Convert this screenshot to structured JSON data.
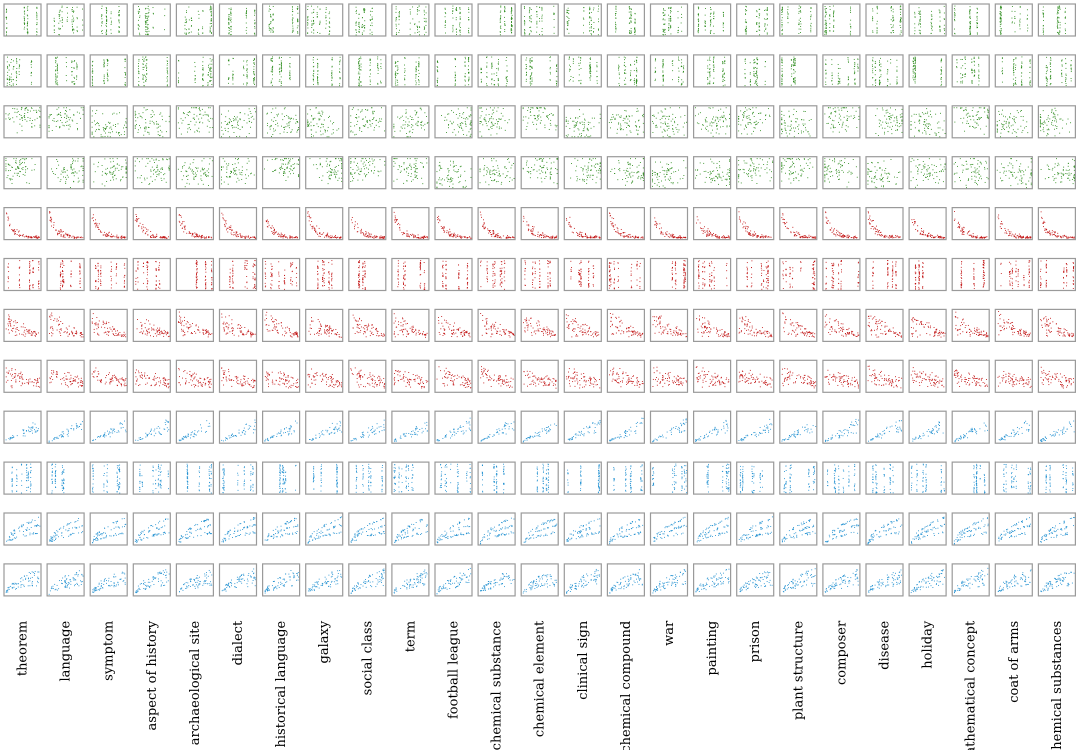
{
  "chart_data": {
    "type": "scatter",
    "layout": "small-multiples grid",
    "grid": false,
    "columns": [
      "theorem",
      "language",
      "symptom",
      "aspect of history",
      "archaeological site",
      "dialect",
      "historical language",
      "galaxy",
      "social class",
      "term",
      "football league",
      "chemical substance",
      "chemical element",
      "clinical sign",
      "chemical compound",
      "war",
      "painting",
      "prison",
      "plant structure",
      "composer",
      "disease",
      "holiday",
      "mathematical concept",
      "coat of arms",
      "chemical substances"
    ],
    "row_groups": [
      {
        "name": "group-1",
        "color": "#2a8a1a",
        "rows": 4
      },
      {
        "name": "group-2",
        "color": "#c01010",
        "rows": 4
      },
      {
        "name": "group-3",
        "color": "#1f8fd0",
        "rows": 4
      }
    ],
    "row_patterns": [
      "vertical-bands",
      "vertical-bands",
      "diffuse-cloud",
      "diffuse-cloud",
      "decay-curve",
      "vertical-bands",
      "decay-clusters",
      "decay-cloud",
      "rising-sparse",
      "vertical-bands",
      "rising-curves",
      "rising-cloud"
    ],
    "axis_ranges": {
      "x": [
        0,
        1
      ],
      "y": [
        0,
        1
      ]
    },
    "ticks": "none",
    "title": "",
    "xlabel": "",
    "ylabel": ""
  }
}
